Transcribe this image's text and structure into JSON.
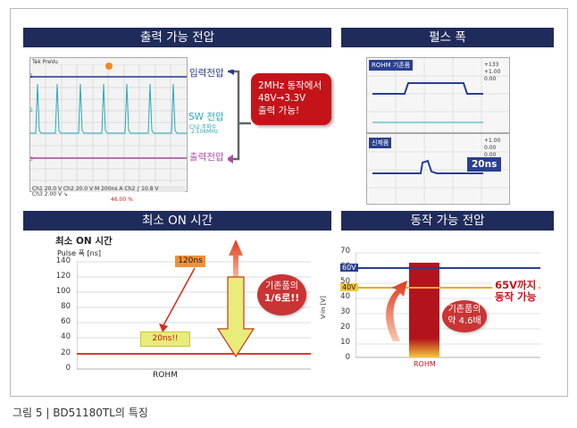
{
  "panels": {
    "output_voltage": "출력 가능 전압",
    "pulse_width": "펄스 폭",
    "min_on_time": "최소 ON 시간",
    "operating_voltage": "동작 가능 전압"
  },
  "scope_top": {
    "header": "Tek PreVu",
    "labels": {
      "input": "입력전압",
      "sw": "SW 전압",
      "output": "출력전압"
    },
    "sw_sub1": "Ch2 주파수",
    "sw_sub2": "2.106MHz",
    "ch_markers": [
      "1",
      "2",
      "3"
    ],
    "footer": [
      "Ch1  20.0 V   Ch2  20.0 V   M 200ns  A  Ch2 ∫  10.8 V",
      "Ch3  2.00 V  ↘",
      "46.00 %"
    ]
  },
  "callout": [
    "2MHz 동작에서",
    "48V→3.3V",
    "출력 가능!"
  ],
  "pulse": {
    "top_label": "ROHM 기존품",
    "bottom_label": "신제품",
    "tag": "20ns",
    "readout_top": [
      "+133",
      "+1.00",
      "0.00"
    ],
    "readout_bottom": [
      "+1.00",
      "0.00",
      "0.00"
    ]
  },
  "min_on": {
    "title": "최소 ON 시간",
    "unit": "Pulse 폭 [ns]",
    "y_ticks": [
      "140",
      "120",
      "100",
      "80",
      "60",
      "40",
      "20",
      "0"
    ],
    "x_label": "ROHM",
    "label_120": "120ns",
    "label_20": "20ns!!",
    "bubble": [
      "기존품의",
      "1/6로!!"
    ]
  },
  "operating": {
    "y_ticks": [
      "70",
      "60",
      "50",
      "40",
      "30",
      "20",
      "10",
      "0"
    ],
    "ylabel": "V-in [V]",
    "line60": "60V",
    "line40": "40V",
    "x_label": "ROHM",
    "callout": [
      "65V까지",
      "동작 가능"
    ],
    "bubble": [
      "기존품의",
      "약 4.6배"
    ]
  },
  "caption": "그림 5 | BD51180TL의 특징",
  "colors": {
    "header_bg": "#1f2b5a",
    "accent_red": "#c4141a",
    "input_line": "#283b8f",
    "sw_line": "#2aa8b8",
    "output_line": "#a84da6"
  }
}
